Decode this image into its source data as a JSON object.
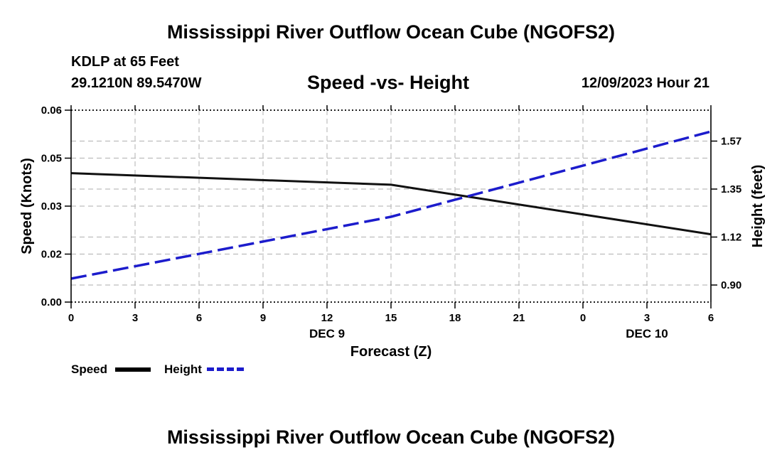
{
  "header": {
    "title": "Mississippi River Outflow Ocean Cube (NGOFS2)",
    "station": "KDLP at 65 Feet",
    "coords": "29.1210N  89.5470W",
    "subtitle": "Speed -vs- Height",
    "datetime": "12/09/2023 Hour 21"
  },
  "footer": {
    "title": "Mississippi River Outflow Ocean Cube (NGOFS2)"
  },
  "legend": {
    "speed_label": "Speed",
    "height_label": "Height"
  },
  "colors": {
    "speed": "#111111",
    "height": "#1c1ccc",
    "grid": "#bdbdbd"
  },
  "chart_data": {
    "type": "line",
    "title": "Speed -vs- Height",
    "xlabel": "Forecast (Z)",
    "ylabel": "Speed (Knots)",
    "y2label": "Height (feet)",
    "x": [
      0,
      3,
      6,
      9,
      12,
      15,
      18,
      21,
      24,
      27,
      30
    ],
    "x_tick_labels": [
      "0",
      "3",
      "6",
      "9",
      "12",
      "15",
      "18",
      "21",
      "0",
      "3",
      "6"
    ],
    "x_date_labels": [
      {
        "at": 12,
        "label": "DEC 9"
      },
      {
        "at": 27,
        "label": "DEC 10"
      }
    ],
    "xlim": [
      0,
      30
    ],
    "ylim": [
      0,
      0.06
    ],
    "y_ticks": [
      0,
      0.015,
      0.03,
      0.045,
      0.06
    ],
    "y_tick_labels": [
      "0.00",
      "0.02",
      "0.03",
      "0.05",
      "0.06"
    ],
    "y2lim": [
      0.82,
      1.72
    ],
    "y2_ticks": [
      0.9,
      1.125,
      1.35,
      1.575
    ],
    "y2_tick_labels": [
      "0.90",
      "1.12",
      "1.35",
      "1.57"
    ],
    "grid": true,
    "legend": "bottom-left",
    "series": [
      {
        "name": "Speed",
        "axis": "left",
        "style": "solid",
        "x": [
          0,
          15,
          30
        ],
        "values": [
          0.0403,
          0.0367,
          0.0212
        ]
      },
      {
        "name": "Height",
        "axis": "right",
        "style": "dashed",
        "x": [
          0,
          15,
          30
        ],
        "values": [
          0.93,
          1.22,
          1.62
        ]
      }
    ]
  }
}
